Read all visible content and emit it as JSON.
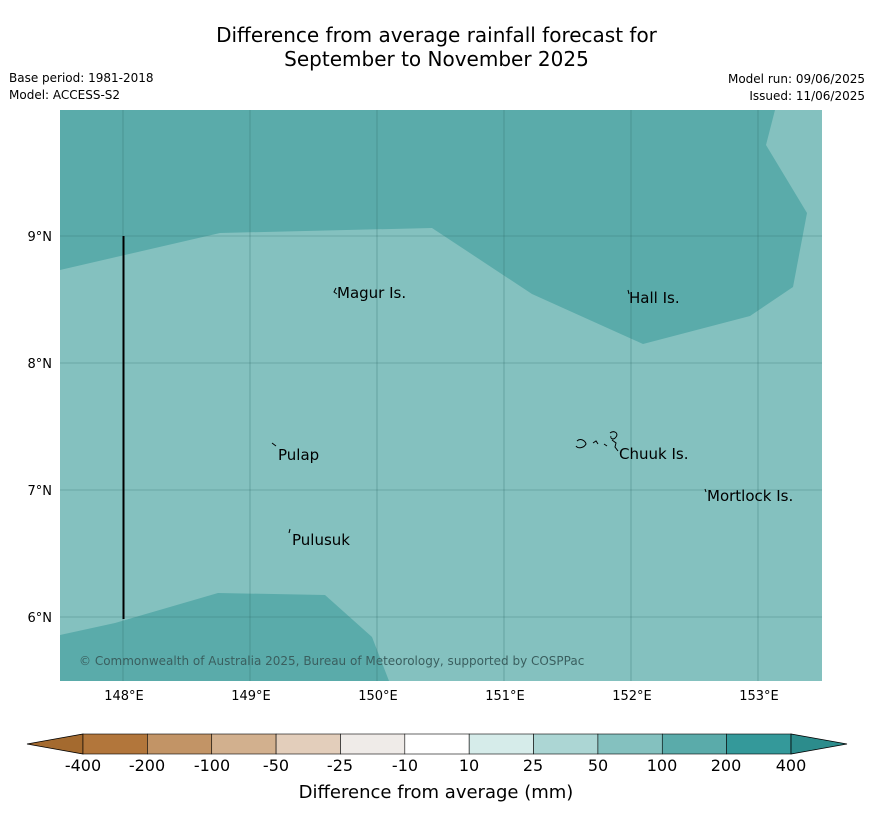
{
  "title": {
    "line1": "Difference from average rainfall forecast for",
    "line2": "September to November 2025"
  },
  "meta": {
    "base_period": "Base period: 1981-2018",
    "model": "Model: ACCESS-S2",
    "model_run": "Model run: 09/06/2025",
    "issued": "Issued: 11/06/2025"
  },
  "map": {
    "lon_ticks": [
      "148°E",
      "149°E",
      "150°E",
      "151°E",
      "152°E",
      "153°E"
    ],
    "lat_ticks": [
      "9°N",
      "8°N",
      "7°N",
      "6°N"
    ],
    "places": [
      {
        "name": "Magur Is."
      },
      {
        "name": "Hall Is."
      },
      {
        "name": "Pulap"
      },
      {
        "name": "Chuuk Is."
      },
      {
        "name": "Mortlock Is."
      },
      {
        "name": "Pulusuk"
      }
    ],
    "categories": {
      "50_to_100": "#84c1bf",
      "100_to_200": "#5aabaa"
    },
    "copyright": "© Commonwealth of Australia 2025, Bureau of Meteorology, supported by COSPPac"
  },
  "colorbar": {
    "label": "Difference from average (mm)",
    "ticks": [
      "-400",
      "-200",
      "-100",
      "-50",
      "-25",
      "-10",
      "10",
      "25",
      "50",
      "100",
      "200",
      "400"
    ],
    "colors": [
      "#a46a2f",
      "#b2763b",
      "#c29466",
      "#d2b08e",
      "#e3cebb",
      "#efebe8",
      "#ffffff",
      "#d6ecea",
      "#acd6d4",
      "#84c1bf",
      "#5aabaa",
      "#34999a",
      "#2c8c8c"
    ]
  }
}
